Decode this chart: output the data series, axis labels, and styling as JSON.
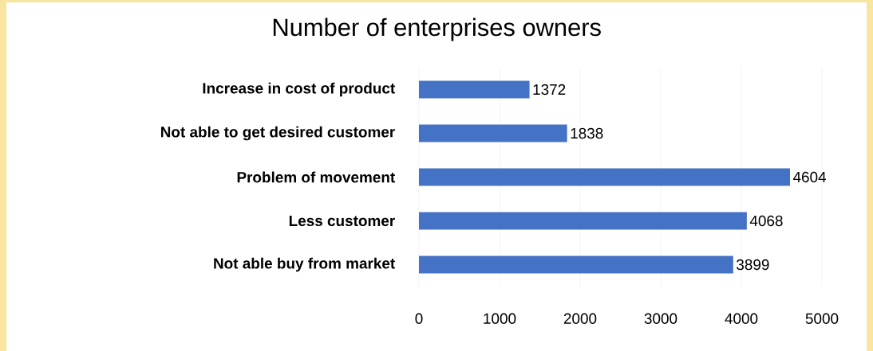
{
  "chart_data": {
    "type": "bar",
    "orientation": "horizontal",
    "title": "Number of enterprises owners",
    "categories": [
      "Increase in cost of product",
      "Not able to get desired customer",
      "Problem of movement",
      "Less customer",
      "Not able buy from market"
    ],
    "values": [
      1372,
      1838,
      4604,
      4068,
      3899
    ],
    "color": "#4472c4",
    "xlim": [
      0,
      5000
    ],
    "xticks": [
      0,
      1000,
      2000,
      3000,
      4000,
      5000
    ],
    "grid": "x",
    "data_labels": true
  }
}
